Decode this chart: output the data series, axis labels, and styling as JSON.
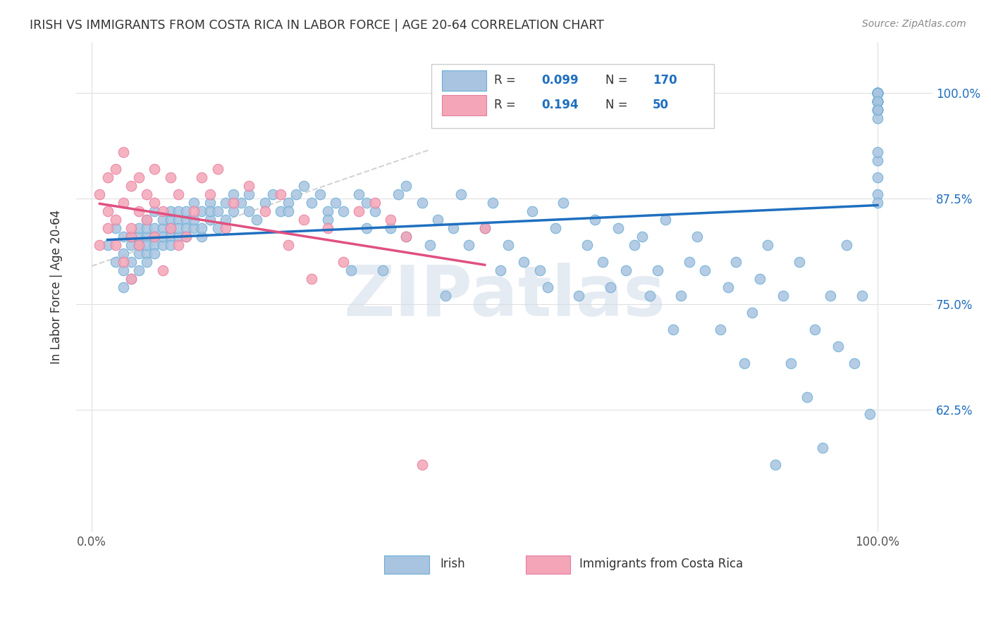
{
  "title": "IRISH VS IMMIGRANTS FROM COSTA RICA IN LABOR FORCE | AGE 20-64 CORRELATION CHART",
  "source": "Source: ZipAtlas.com",
  "ylabel": "In Labor Force | Age 20-64",
  "R_irish": 0.099,
  "N_irish": 170,
  "R_costa_rica": 0.194,
  "N_costa_rica": 50,
  "xlim": [
    -0.02,
    1.07
  ],
  "ylim": [
    0.48,
    1.06
  ],
  "irish_color": "#a8c4e0",
  "irish_edge_color": "#6aaed6",
  "costa_rica_color": "#f4a6b8",
  "costa_rica_edge_color": "#e87da0",
  "trend_irish_color": "#1f6fbf",
  "trend_costa_rica_color": "#e05080",
  "trend_dashed_color": "#c8c8c8",
  "watermark_color": "#d0dce8",
  "legend_R_color": "#1f6fbf",
  "grid_color": "#e0e0e0",
  "title_color": "#333333",
  "ytick_right_color": "#1f6fbf",
  "background_color": "#ffffff",
  "irish_x": [
    0.02,
    0.03,
    0.03,
    0.04,
    0.04,
    0.04,
    0.04,
    0.05,
    0.05,
    0.05,
    0.05,
    0.06,
    0.06,
    0.06,
    0.06,
    0.06,
    0.07,
    0.07,
    0.07,
    0.07,
    0.07,
    0.07,
    0.08,
    0.08,
    0.08,
    0.08,
    0.08,
    0.09,
    0.09,
    0.09,
    0.09,
    0.1,
    0.1,
    0.1,
    0.1,
    0.1,
    0.1,
    0.11,
    0.11,
    0.11,
    0.11,
    0.12,
    0.12,
    0.12,
    0.12,
    0.13,
    0.13,
    0.13,
    0.14,
    0.14,
    0.14,
    0.15,
    0.15,
    0.15,
    0.16,
    0.16,
    0.17,
    0.17,
    0.18,
    0.18,
    0.19,
    0.2,
    0.2,
    0.21,
    0.22,
    0.23,
    0.24,
    0.25,
    0.25,
    0.26,
    0.27,
    0.28,
    0.29,
    0.3,
    0.3,
    0.31,
    0.32,
    0.33,
    0.34,
    0.35,
    0.35,
    0.36,
    0.37,
    0.38,
    0.39,
    0.4,
    0.4,
    0.42,
    0.43,
    0.44,
    0.45,
    0.46,
    0.47,
    0.48,
    0.5,
    0.51,
    0.52,
    0.53,
    0.55,
    0.56,
    0.57,
    0.58,
    0.59,
    0.6,
    0.62,
    0.63,
    0.64,
    0.65,
    0.66,
    0.67,
    0.68,
    0.69,
    0.7,
    0.71,
    0.72,
    0.73,
    0.74,
    0.75,
    0.76,
    0.77,
    0.78,
    0.8,
    0.81,
    0.82,
    0.83,
    0.84,
    0.85,
    0.86,
    0.87,
    0.88,
    0.89,
    0.9,
    0.91,
    0.92,
    0.93,
    0.94,
    0.95,
    0.96,
    0.97,
    0.98,
    0.99,
    1.0,
    1.0,
    1.0,
    1.0,
    1.0,
    1.0,
    1.0,
    1.0,
    1.0,
    1.0,
    1.0,
    1.0,
    1.0,
    1.0,
    1.0,
    1.0,
    1.0,
    1.0,
    1.0,
    1.0,
    1.0,
    1.0,
    1.0,
    1.0,
    1.0,
    1.0,
    1.0,
    1.0,
    1.0
  ],
  "irish_y": [
    0.82,
    0.8,
    0.84,
    0.81,
    0.83,
    0.79,
    0.77,
    0.82,
    0.8,
    0.83,
    0.78,
    0.83,
    0.81,
    0.84,
    0.79,
    0.82,
    0.83,
    0.81,
    0.85,
    0.8,
    0.82,
    0.84,
    0.83,
    0.82,
    0.84,
    0.86,
    0.81,
    0.84,
    0.85,
    0.82,
    0.83,
    0.84,
    0.85,
    0.83,
    0.86,
    0.82,
    0.84,
    0.83,
    0.85,
    0.86,
    0.84,
    0.85,
    0.83,
    0.86,
    0.84,
    0.84,
    0.85,
    0.87,
    0.83,
    0.86,
    0.84,
    0.87,
    0.85,
    0.86,
    0.86,
    0.84,
    0.87,
    0.85,
    0.88,
    0.86,
    0.87,
    0.86,
    0.88,
    0.85,
    0.87,
    0.88,
    0.86,
    0.87,
    0.86,
    0.88,
    0.89,
    0.87,
    0.88,
    0.86,
    0.85,
    0.87,
    0.86,
    0.79,
    0.88,
    0.84,
    0.87,
    0.86,
    0.79,
    0.84,
    0.88,
    0.83,
    0.89,
    0.87,
    0.82,
    0.85,
    0.76,
    0.84,
    0.88,
    0.82,
    0.84,
    0.87,
    0.79,
    0.82,
    0.8,
    0.86,
    0.79,
    0.77,
    0.84,
    0.87,
    0.76,
    0.82,
    0.85,
    0.8,
    0.77,
    0.84,
    0.79,
    0.82,
    0.83,
    0.76,
    0.79,
    0.85,
    0.72,
    0.76,
    0.8,
    0.83,
    0.79,
    0.72,
    0.77,
    0.8,
    0.68,
    0.74,
    0.78,
    0.82,
    0.56,
    0.76,
    0.68,
    0.8,
    0.64,
    0.72,
    0.58,
    0.76,
    0.7,
    0.82,
    0.68,
    0.76,
    0.62,
    0.98,
    0.99,
    1.0,
    1.0,
    1.0,
    0.99,
    1.0,
    0.99,
    1.0,
    1.0,
    0.98,
    0.99,
    1.0,
    1.0,
    0.99,
    0.98,
    1.0,
    1.0,
    0.97,
    0.99,
    1.0,
    1.0,
    0.99,
    0.98,
    0.88,
    0.87,
    0.9,
    0.92,
    0.93
  ],
  "costa_rica_x": [
    0.01,
    0.01,
    0.02,
    0.02,
    0.02,
    0.03,
    0.03,
    0.03,
    0.04,
    0.04,
    0.04,
    0.05,
    0.05,
    0.05,
    0.05,
    0.06,
    0.06,
    0.06,
    0.07,
    0.07,
    0.08,
    0.08,
    0.08,
    0.09,
    0.09,
    0.1,
    0.1,
    0.11,
    0.11,
    0.12,
    0.13,
    0.14,
    0.15,
    0.16,
    0.17,
    0.18,
    0.2,
    0.22,
    0.24,
    0.25,
    0.27,
    0.28,
    0.3,
    0.32,
    0.34,
    0.36,
    0.38,
    0.4,
    0.42,
    0.5
  ],
  "costa_rica_y": [
    0.82,
    0.88,
    0.9,
    0.86,
    0.84,
    0.82,
    0.91,
    0.85,
    0.87,
    0.93,
    0.8,
    0.83,
    0.89,
    0.84,
    0.78,
    0.86,
    0.82,
    0.9,
    0.85,
    0.88,
    0.87,
    0.91,
    0.83,
    0.86,
    0.79,
    0.84,
    0.9,
    0.82,
    0.88,
    0.83,
    0.86,
    0.9,
    0.88,
    0.91,
    0.84,
    0.87,
    0.89,
    0.86,
    0.88,
    0.82,
    0.85,
    0.78,
    0.84,
    0.8,
    0.86,
    0.87,
    0.85,
    0.83,
    0.56,
    0.84
  ]
}
